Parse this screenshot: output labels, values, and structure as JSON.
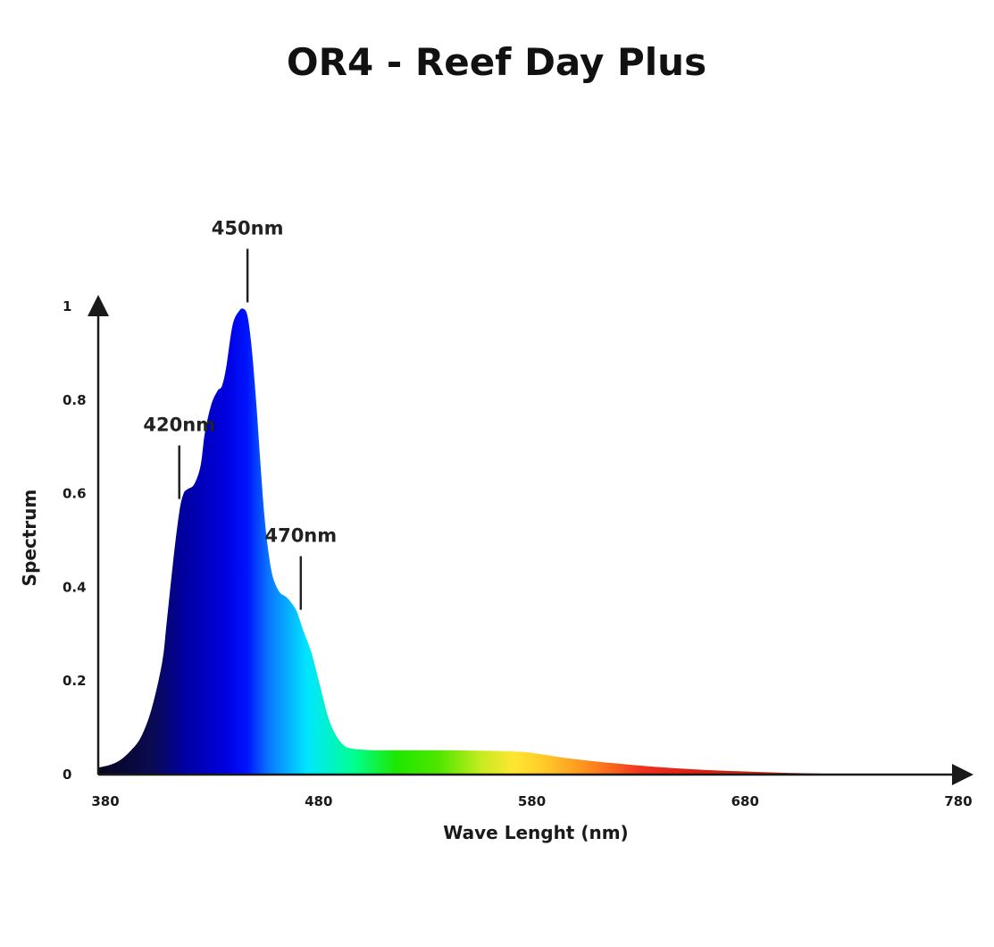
{
  "chart_data": {
    "type": "area",
    "title": "OR4 - Reef Day Plus",
    "xlabel": "Wave Lenght (nm)",
    "ylabel": "Spectrum",
    "xlim": [
      380,
      780
    ],
    "ylim": [
      0,
      1
    ],
    "x_ticks": [
      "380",
      "480",
      "580",
      "680",
      "780"
    ],
    "y_ticks": [
      "0",
      "0.2",
      "0.4",
      "0.6",
      "0.8",
      "1"
    ],
    "grid": false,
    "legend": "none",
    "fill": "wavelength spectrum gradient",
    "series": [
      {
        "x": [
          380,
          385,
          390,
          395,
          400,
          405,
          410,
          412,
          415,
          418,
          420,
          422,
          425,
          428,
          430,
          433,
          436,
          438,
          440,
          443,
          446,
          448,
          450,
          452,
          454,
          456,
          458,
          460,
          462,
          465,
          468,
          470,
          473,
          476,
          480,
          484,
          488,
          492,
          496,
          500,
          505,
          510,
          520,
          540,
          560,
          570,
          580,
          590,
          600,
          620,
          640,
          660,
          680,
          700,
          720,
          740,
          760,
          780
        ],
        "y": [
          0.015,
          0.02,
          0.03,
          0.05,
          0.08,
          0.14,
          0.24,
          0.32,
          0.45,
          0.56,
          0.6,
          0.61,
          0.62,
          0.66,
          0.73,
          0.79,
          0.82,
          0.83,
          0.87,
          0.96,
          0.99,
          0.995,
          0.98,
          0.91,
          0.8,
          0.67,
          0.55,
          0.47,
          0.42,
          0.39,
          0.38,
          0.37,
          0.35,
          0.31,
          0.26,
          0.19,
          0.12,
          0.08,
          0.06,
          0.055,
          0.053,
          0.052,
          0.052,
          0.052,
          0.051,
          0.05,
          0.048,
          0.042,
          0.035,
          0.025,
          0.017,
          0.011,
          0.007,
          0.004,
          0.002,
          0.001,
          0.0,
          0.0
        ]
      }
    ],
    "annotations": [
      {
        "label": "420nm",
        "x": 418
      },
      {
        "label": "450nm",
        "x": 450
      },
      {
        "label": "470nm",
        "x": 475
      }
    ],
    "colors": {
      "axis": "#1a1a1a",
      "gradient": [
        "#07071e",
        "#0a0a50",
        "#0000a0",
        "#0000e0",
        "#0014ff",
        "#0a78ff",
        "#00e6ff",
        "#00ff90",
        "#1ee600",
        "#50e600",
        "#c8ec20",
        "#ffe632",
        "#ffc828",
        "#ff8c1e",
        "#f0321e",
        "#dc1e14",
        "#b42814",
        "#5a1e14",
        "#1e0a0a"
      ],
      "gradient_stops_nm": [
        380,
        405,
        420,
        440,
        450,
        460,
        478,
        500,
        520,
        540,
        560,
        575,
        590,
        610,
        635,
        660,
        700,
        740,
        780
      ]
    }
  }
}
